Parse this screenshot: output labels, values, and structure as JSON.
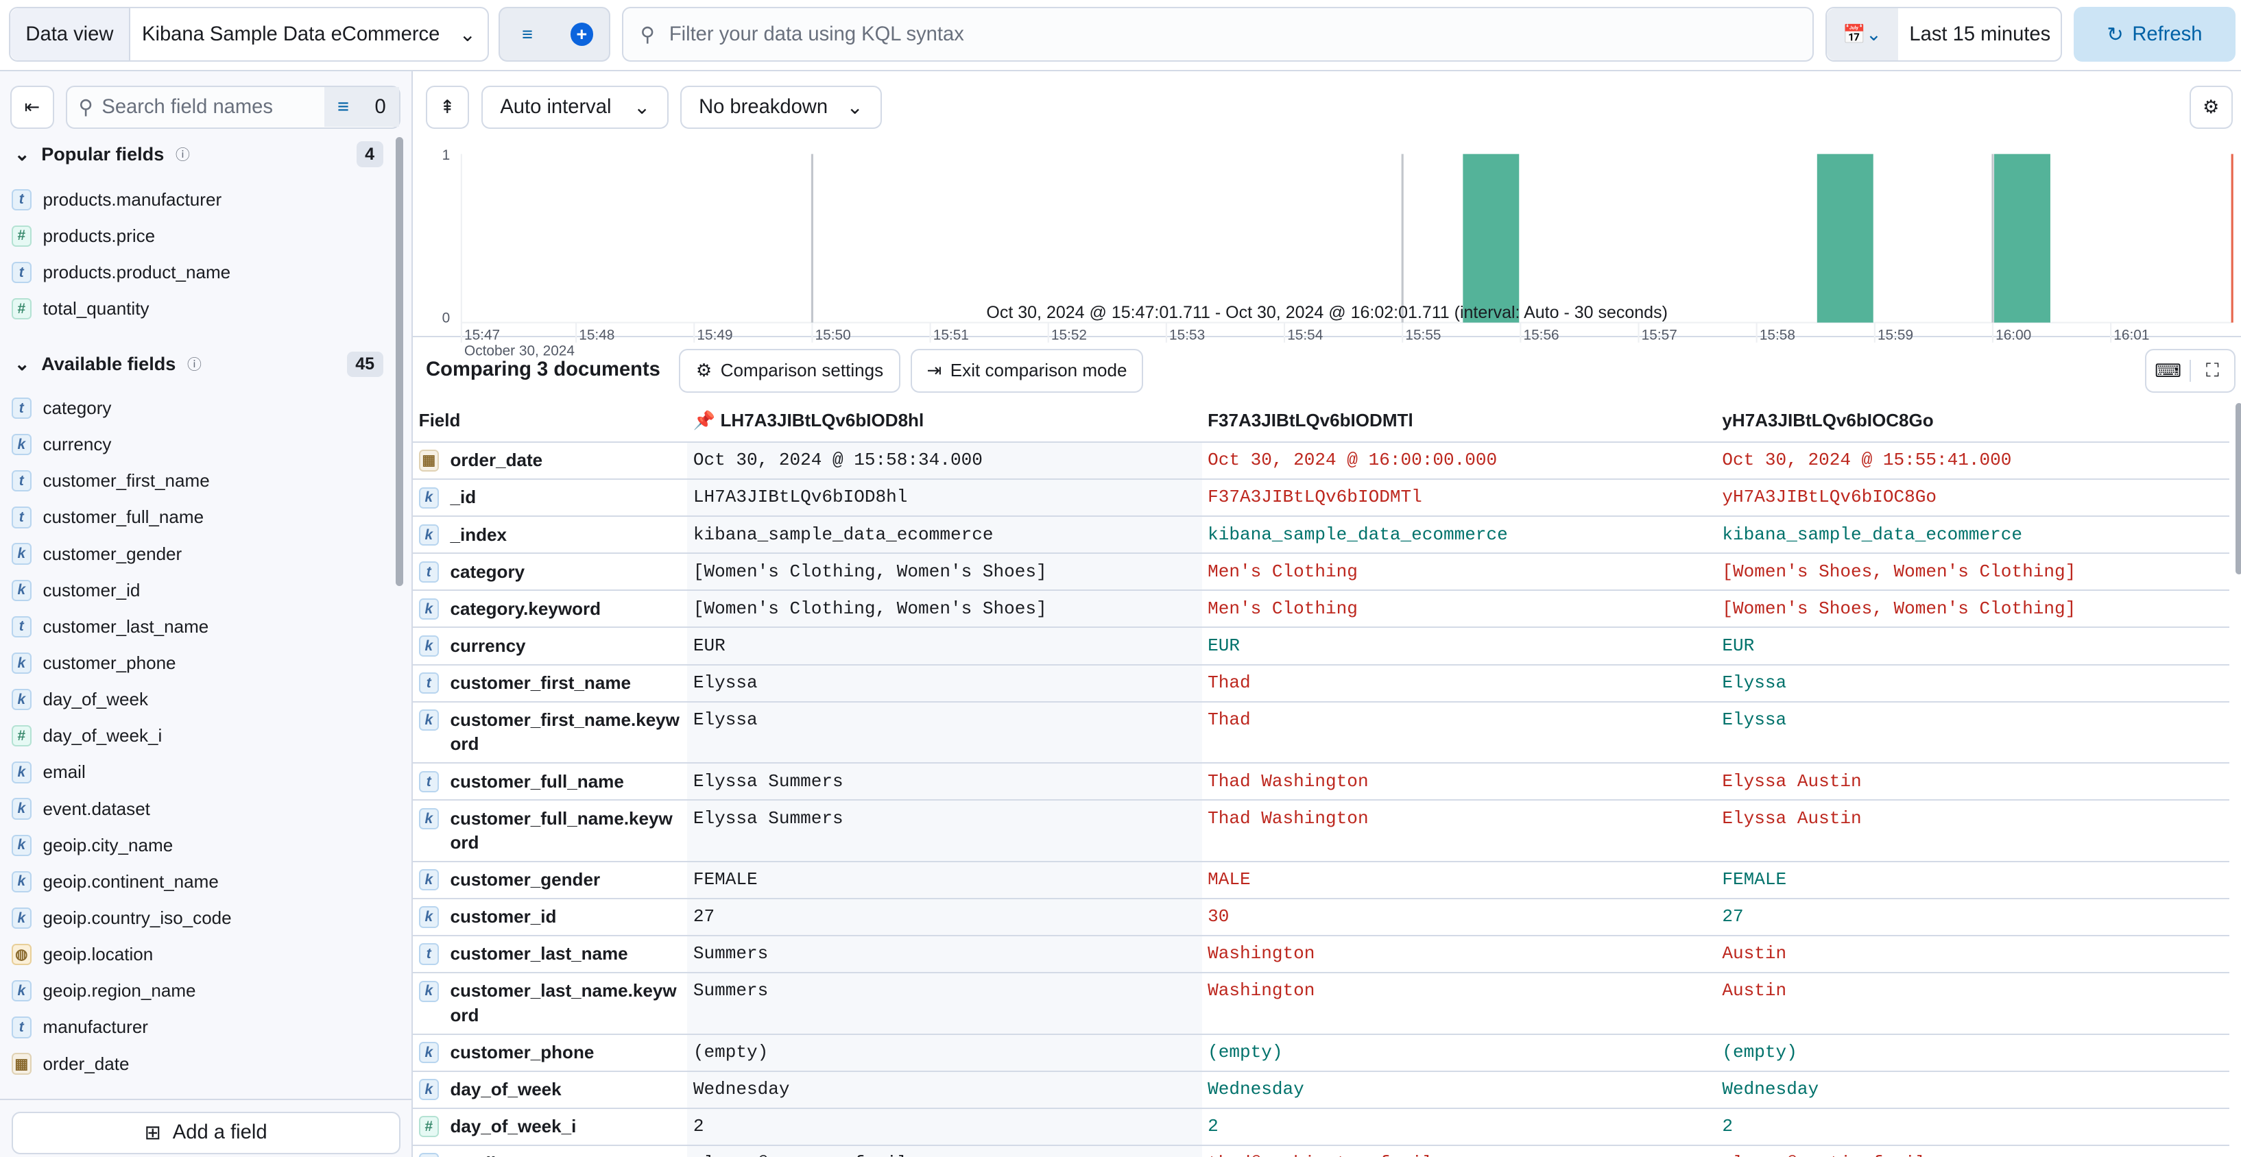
{
  "topbar": {
    "data_view_label": "Data view",
    "data_view_value": "Kibana Sample Data eCommerce",
    "query_placeholder": "Filter your data using KQL syntax",
    "time_range": "Last 15 minutes",
    "refresh_label": "Refresh",
    "accent": "#0061a6"
  },
  "sidebar": {
    "search_placeholder": "Search field names",
    "filter_count": "0",
    "popular": {
      "title": "Popular fields",
      "count": "4",
      "items": [
        {
          "type": "t",
          "name": "products.manufacturer"
        },
        {
          "type": "#",
          "name": "products.price"
        },
        {
          "type": "t",
          "name": "products.product_name"
        },
        {
          "type": "#",
          "name": "total_quantity"
        }
      ]
    },
    "available": {
      "title": "Available fields",
      "count": "45",
      "items": [
        {
          "type": "t",
          "name": "category"
        },
        {
          "type": "k",
          "name": "currency"
        },
        {
          "type": "t",
          "name": "customer_first_name"
        },
        {
          "type": "t",
          "name": "customer_full_name"
        },
        {
          "type": "k",
          "name": "customer_gender"
        },
        {
          "type": "k",
          "name": "customer_id"
        },
        {
          "type": "t",
          "name": "customer_last_name"
        },
        {
          "type": "k",
          "name": "customer_phone"
        },
        {
          "type": "k",
          "name": "day_of_week"
        },
        {
          "type": "#",
          "name": "day_of_week_i"
        },
        {
          "type": "k",
          "name": "email"
        },
        {
          "type": "k",
          "name": "event.dataset"
        },
        {
          "type": "k",
          "name": "geoip.city_name"
        },
        {
          "type": "k",
          "name": "geoip.continent_name"
        },
        {
          "type": "k",
          "name": "geoip.country_iso_code"
        },
        {
          "type": "geo",
          "name": "geoip.location"
        },
        {
          "type": "k",
          "name": "geoip.region_name"
        },
        {
          "type": "t",
          "name": "manufacturer"
        },
        {
          "type": "date",
          "name": "order_date"
        }
      ]
    },
    "add_field_label": "Add a field"
  },
  "chart_controls": {
    "interval": "Auto interval",
    "breakdown": "No breakdown"
  },
  "chart_data": {
    "type": "bar",
    "x_ticks": [
      "15:47",
      "15:48",
      "15:49",
      "15:50",
      "15:51",
      "15:52",
      "15:53",
      "15:54",
      "15:55",
      "15:56",
      "15:57",
      "15:58",
      "15:59",
      "16:00",
      "16:01"
    ],
    "x_date_label": "October 30, 2024",
    "y_ticks": [
      "0",
      "1"
    ],
    "ylim": [
      0,
      1
    ],
    "xlim": [
      "15:47:01.711",
      "16:02:01.711"
    ],
    "bars": [
      {
        "start": "15:55:30",
        "end": "15:56:00",
        "value": 1
      },
      {
        "start": "15:58:30",
        "end": "15:59:00",
        "value": 1
      },
      {
        "start": "16:00:00",
        "end": "16:00:30",
        "value": 1
      }
    ],
    "bar_color": "#54b399",
    "caption": "Oct 30, 2024 @ 15:47:01.711 - Oct 30, 2024 @ 16:02:01.711 (interval: Auto - 30 seconds)"
  },
  "comparison": {
    "title": "Comparing 3 documents",
    "settings_label": "Comparison settings",
    "exit_label": "Exit comparison mode",
    "field_header": "Field",
    "doc_headers": [
      "LH7A3JIBtLQv6bIOD8hl",
      "F37A3JIBtLQv6bIODMTl",
      "yH7A3JIBtLQv6bIOC8Go"
    ],
    "match_color": "#00726b",
    "diff_color": "#bd271e",
    "rows": [
      {
        "field": "order_date",
        "type": "date",
        "values": [
          "Oct 30, 2024 @ 15:58:34.000",
          "Oct 30, 2024 @ 16:00:00.000",
          "Oct 30, 2024 @ 15:55:41.000"
        ],
        "status": [
          "diff",
          "diff"
        ]
      },
      {
        "field": "_id",
        "type": "k",
        "values": [
          "LH7A3JIBtLQv6bIOD8hl",
          "F37A3JIBtLQv6bIODMTl",
          "yH7A3JIBtLQv6bIOC8Go"
        ],
        "status": [
          "diff",
          "diff"
        ]
      },
      {
        "field": "_index",
        "type": "k",
        "values": [
          "kibana_sample_data_ecommerce",
          "kibana_sample_data_ecommerce",
          "kibana_sample_data_ecommerce"
        ],
        "status": [
          "same",
          "same"
        ]
      },
      {
        "field": "category",
        "type": "t",
        "values": [
          "[Women's Clothing, Women's Shoes]",
          "Men's Clothing",
          "[Women's Shoes, Women's Clothing]"
        ],
        "status": [
          "diff",
          "diff"
        ]
      },
      {
        "field": "category.keyword",
        "type": "k",
        "values": [
          "[Women's Clothing, Women's Shoes]",
          "Men's Clothing",
          "[Women's Shoes, Women's Clothing]"
        ],
        "status": [
          "diff",
          "diff"
        ]
      },
      {
        "field": "currency",
        "type": "k",
        "values": [
          "EUR",
          "EUR",
          "EUR"
        ],
        "status": [
          "same",
          "same"
        ]
      },
      {
        "field": "customer_first_name",
        "type": "t",
        "values": [
          "Elyssa",
          "Thad",
          "Elyssa"
        ],
        "status": [
          "diff",
          "same"
        ]
      },
      {
        "field": "customer_first_name.keyword",
        "type": "k",
        "values": [
          "Elyssa",
          "Thad",
          "Elyssa"
        ],
        "status": [
          "diff",
          "same"
        ]
      },
      {
        "field": "customer_full_name",
        "type": "t",
        "values": [
          "Elyssa Summers",
          "Thad Washington",
          "Elyssa Austin"
        ],
        "status": [
          "diff",
          "diff"
        ]
      },
      {
        "field": "customer_full_name.keyword",
        "type": "k",
        "values": [
          "Elyssa Summers",
          "Thad Washington",
          "Elyssa Austin"
        ],
        "status": [
          "diff",
          "diff"
        ]
      },
      {
        "field": "customer_gender",
        "type": "k",
        "values": [
          "FEMALE",
          "MALE",
          "FEMALE"
        ],
        "status": [
          "diff",
          "same"
        ]
      },
      {
        "field": "customer_id",
        "type": "k",
        "values": [
          "27",
          "30",
          "27"
        ],
        "status": [
          "diff",
          "same"
        ]
      },
      {
        "field": "customer_last_name",
        "type": "t",
        "values": [
          "Summers",
          "Washington",
          "Austin"
        ],
        "status": [
          "diff",
          "diff"
        ]
      },
      {
        "field": "customer_last_name.keyword",
        "type": "k",
        "values": [
          "Summers",
          "Washington",
          "Austin"
        ],
        "status": [
          "diff",
          "diff"
        ]
      },
      {
        "field": "customer_phone",
        "type": "k",
        "values": [
          "(empty)",
          "(empty)",
          "(empty)"
        ],
        "status": [
          "same",
          "same"
        ]
      },
      {
        "field": "day_of_week",
        "type": "k",
        "values": [
          "Wednesday",
          "Wednesday",
          "Wednesday"
        ],
        "status": [
          "same",
          "same"
        ]
      },
      {
        "field": "day_of_week_i",
        "type": "#",
        "values": [
          "2",
          "2",
          "2"
        ],
        "status": [
          "same",
          "same"
        ]
      },
      {
        "field": "email",
        "type": "k",
        "values": [
          "elyssa@summers-family.zzz",
          "thad@washington-family.zzz",
          "elyssa@austin-family.zzz"
        ],
        "status": [
          "diff",
          "diff"
        ]
      }
    ]
  }
}
